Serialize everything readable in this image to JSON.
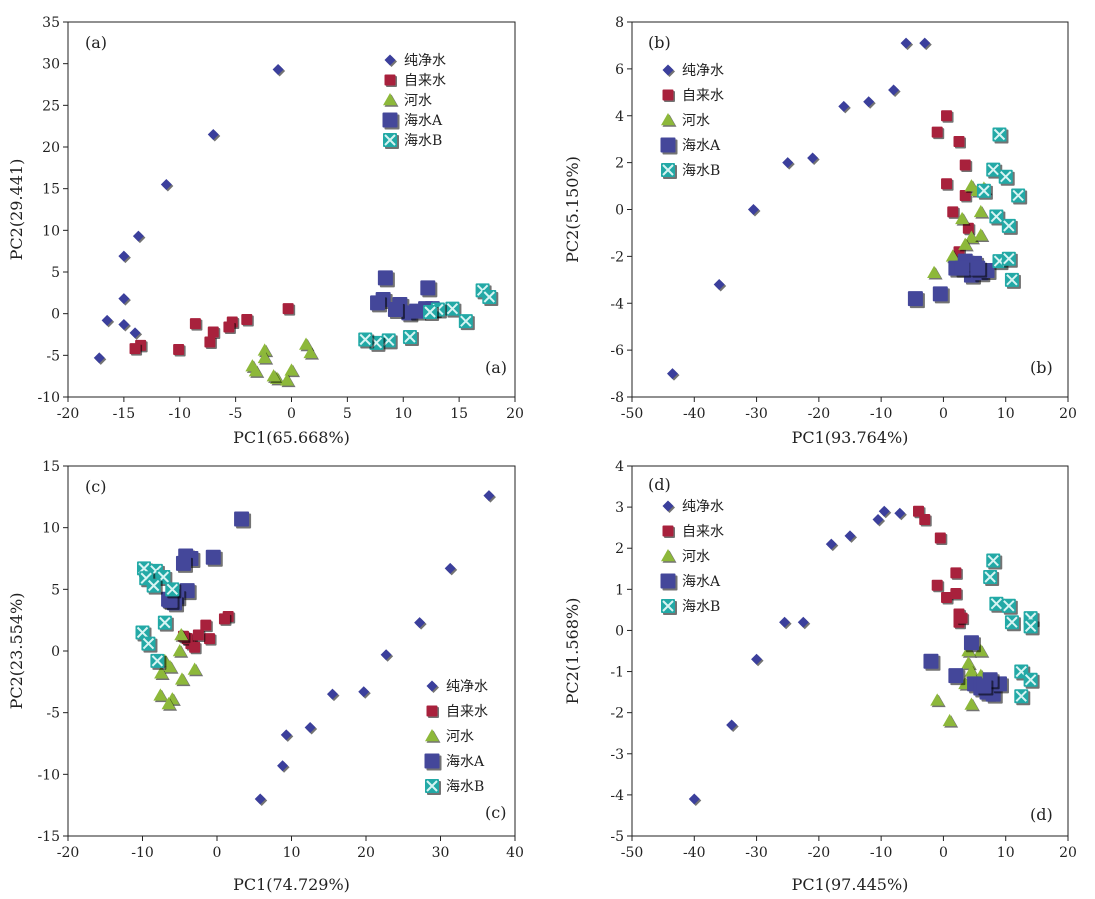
{
  "figure": {
    "colors": {
      "纯净水": "#3b3f9c",
      "自来水": "#a8213c",
      "河水": "#8db83a",
      "海水A": "#44479a",
      "海水B": "#22a9a6"
    }
  },
  "chart_data": [
    {
      "type": "scatter",
      "panel_label": "(a)",
      "xlabel": "PC1(65.668%)",
      "ylabel": "PC2(29.441)",
      "xlim": [
        -20,
        20
      ],
      "ylim": [
        -10,
        35
      ],
      "xticks": [
        -20,
        -15,
        -10,
        -5,
        0,
        5,
        10,
        15,
        20
      ],
      "yticks": [
        -10,
        -5,
        0,
        5,
        10,
        15,
        20,
        25,
        30,
        35
      ],
      "legend_position": "top-right",
      "series": [
        {
          "name": "纯净水",
          "marker": "diamond",
          "points": [
            [
              -1.2,
              29.3
            ],
            [
              -7,
              21.5
            ],
            [
              -11.2,
              15.5
            ],
            [
              -13.7,
              9.3
            ],
            [
              -15,
              6.9
            ],
            [
              -15,
              1.8
            ],
            [
              -16.5,
              -0.8
            ],
            [
              -15,
              -1.3
            ],
            [
              -14,
              -2.3
            ],
            [
              -17.2,
              -5.3
            ]
          ]
        },
        {
          "name": "自来水",
          "marker": "square",
          "points": [
            [
              -0.3,
              0.6
            ],
            [
              -4,
              -0.7
            ],
            [
              -5.3,
              -1
            ],
            [
              -5.6,
              -1.6
            ],
            [
              -8.6,
              -1.2
            ],
            [
              -7,
              -2.2
            ],
            [
              -7.3,
              -3.4
            ],
            [
              -10.1,
              -4.3
            ],
            [
              -13.5,
              -3.8
            ],
            [
              -14,
              -4.2
            ]
          ]
        },
        {
          "name": "河水",
          "marker": "triangle",
          "points": [
            [
              1.3,
              -3.7
            ],
            [
              1.7,
              -4.7
            ],
            [
              -2.4,
              -4.4
            ],
            [
              -2.4,
              -5.3
            ],
            [
              -3.5,
              -6.3
            ],
            [
              -3.2,
              -6.9
            ],
            [
              0,
              -6.8
            ],
            [
              -1.3,
              -7.8
            ],
            [
              -0.4,
              -8
            ],
            [
              -1.6,
              -7.5
            ]
          ]
        },
        {
          "name": "海水A",
          "marker": "square-big",
          "points": [
            [
              8.4,
              4.3
            ],
            [
              12.2,
              3.1
            ],
            [
              8.2,
              1.7
            ],
            [
              7.7,
              1.3
            ],
            [
              9.7,
              1.1
            ],
            [
              12,
              0.6
            ],
            [
              10.5,
              0.1
            ],
            [
              12.6,
              0.6
            ],
            [
              9.3,
              0.5
            ],
            [
              11.2,
              0.3
            ]
          ]
        },
        {
          "name": "海水B",
          "marker": "square-x",
          "points": [
            [
              17.1,
              2.8
            ],
            [
              17.7,
              2
            ],
            [
              14.4,
              0.6
            ],
            [
              13.1,
              0.5
            ],
            [
              12.4,
              0.2
            ],
            [
              15.6,
              -0.9
            ],
            [
              10.6,
              -2.8
            ],
            [
              8.7,
              -3.2
            ],
            [
              7.6,
              -3.5
            ],
            [
              6.6,
              -3.1
            ]
          ]
        }
      ]
    },
    {
      "type": "scatter",
      "panel_label": "(b)",
      "xlabel": "PC1(93.764%)",
      "ylabel": "PC2(5.150%)",
      "xlim": [
        -50,
        20
      ],
      "ylim": [
        -8,
        8
      ],
      "xticks": [
        -50,
        -40,
        -30,
        -20,
        -10,
        0,
        10,
        20
      ],
      "yticks": [
        -8,
        -6,
        -4,
        -2,
        0,
        2,
        4,
        6,
        8
      ],
      "legend_position": "top-left",
      "series": [
        {
          "name": "纯净水",
          "marker": "diamond",
          "points": [
            [
              -3,
              7.1
            ],
            [
              -6,
              7.1
            ],
            [
              -8,
              5.1
            ],
            [
              -12,
              4.6
            ],
            [
              -16,
              4.4
            ],
            [
              -21,
              2.2
            ],
            [
              -25,
              2
            ],
            [
              -30.5,
              0
            ],
            [
              -36,
              -3.2
            ],
            [
              -43.5,
              -7
            ]
          ]
        },
        {
          "name": "自来水",
          "marker": "square",
          "points": [
            [
              0.5,
              4
            ],
            [
              -1,
              3.3
            ],
            [
              2.5,
              2.9
            ],
            [
              3.5,
              1.9
            ],
            [
              0.5,
              1.1
            ],
            [
              3.5,
              0.6
            ],
            [
              1.5,
              -0.1
            ],
            [
              4,
              -0.8
            ],
            [
              2.5,
              -1.8
            ],
            [
              3,
              -2.4
            ]
          ]
        },
        {
          "name": "河水",
          "marker": "triangle",
          "points": [
            [
              4.5,
              1
            ],
            [
              6.5,
              0.9
            ],
            [
              5.5,
              0.8
            ],
            [
              3,
              -0.4
            ],
            [
              6,
              -0.1
            ],
            [
              4.5,
              -1.2
            ],
            [
              3.5,
              -1.5
            ],
            [
              6,
              -1.1
            ],
            [
              1.5,
              -2
            ],
            [
              -1.5,
              -2.7
            ]
          ]
        },
        {
          "name": "海水A",
          "marker": "square-big",
          "points": [
            [
              -4.5,
              -3.8
            ],
            [
              -0.5,
              -3.6
            ],
            [
              2,
              -2.5
            ],
            [
              3.5,
              -2.2
            ],
            [
              4.5,
              -2.8
            ],
            [
              6,
              -2.7
            ],
            [
              7,
              -2.6
            ],
            [
              5,
              -2.3
            ],
            [
              3,
              -2.5
            ],
            [
              5.5,
              -2.5
            ]
          ]
        },
        {
          "name": "海水B",
          "marker": "square-x",
          "points": [
            [
              9,
              3.2
            ],
            [
              8,
              1.7
            ],
            [
              10,
              1.4
            ],
            [
              6.5,
              0.8
            ],
            [
              12,
              0.6
            ],
            [
              8.5,
              -0.3
            ],
            [
              10.5,
              -0.7
            ],
            [
              9,
              -2.2
            ],
            [
              10.5,
              -2.1
            ],
            [
              11,
              -3
            ]
          ]
        }
      ]
    },
    {
      "type": "scatter",
      "panel_label": "(c)",
      "xlabel": "PC1(74.729%)",
      "ylabel": "PC2(23.554%)",
      "xlim": [
        -20,
        40
      ],
      "ylim": [
        -15,
        15
      ],
      "xticks": [
        -20,
        -10,
        0,
        10,
        20,
        30,
        40
      ],
      "yticks": [
        -15,
        -10,
        -5,
        0,
        5,
        10,
        15
      ],
      "legend_position": "bottom-right",
      "series": [
        {
          "name": "纯净水",
          "marker": "diamond",
          "points": [
            [
              36.5,
              12.6
            ],
            [
              31.3,
              6.7
            ],
            [
              27.2,
              2.3
            ],
            [
              22.7,
              -0.3
            ],
            [
              15.5,
              -3.5
            ],
            [
              19.7,
              -3.3
            ],
            [
              12.5,
              -6.2
            ],
            [
              9.3,
              -6.8
            ],
            [
              8.8,
              -9.3
            ],
            [
              5.8,
              -12
            ]
          ]
        },
        {
          "name": "自来水",
          "marker": "square",
          "points": [
            [
              1.5,
              2.8
            ],
            [
              1,
              2.6
            ],
            [
              -1.5,
              2.1
            ],
            [
              -4,
              1
            ],
            [
              -3.5,
              0.6
            ],
            [
              -4,
              1
            ],
            [
              -1,
              1
            ],
            [
              -3,
              0.3
            ],
            [
              -4.5,
              1.2
            ],
            [
              -2.5,
              1.3
            ]
          ]
        },
        {
          "name": "河水",
          "marker": "triangle",
          "points": [
            [
              -4.8,
              1.3
            ],
            [
              -5,
              0
            ],
            [
              -7,
              -0.8
            ],
            [
              -6.3,
              -1.3
            ],
            [
              -7.5,
              -1.8
            ],
            [
              -3,
              -1.5
            ],
            [
              -4.7,
              -2.3
            ],
            [
              -6,
              -3.9
            ],
            [
              -7.6,
              -3.6
            ],
            [
              -6.5,
              -4.3
            ]
          ]
        },
        {
          "name": "海水A",
          "marker": "square-big",
          "points": [
            [
              3.3,
              10.7
            ],
            [
              -4.2,
              7.7
            ],
            [
              -0.5,
              7.6
            ],
            [
              -3.5,
              7.5
            ],
            [
              -4.5,
              7.1
            ],
            [
              -4,
              4.9
            ],
            [
              -5.4,
              4.4
            ],
            [
              -6.5,
              4.2
            ],
            [
              -5.7,
              3.9
            ],
            [
              -6.3,
              4.1
            ]
          ]
        },
        {
          "name": "海水B",
          "marker": "square-x",
          "points": [
            [
              -9.8,
              6.7
            ],
            [
              -8.2,
              6.5
            ],
            [
              -7.2,
              6
            ],
            [
              -9.5,
              5.9
            ],
            [
              -8.5,
              5.3
            ],
            [
              -6,
              5
            ],
            [
              -7,
              2.3
            ],
            [
              -10,
              1.5
            ],
            [
              -9.2,
              0.6
            ],
            [
              -8,
              -0.8
            ]
          ]
        }
      ]
    },
    {
      "type": "scatter",
      "panel_label": "(d)",
      "xlabel": "PC1(97.445%)",
      "ylabel": "PC2(1.568%)",
      "xlim": [
        -50,
        20
      ],
      "ylim": [
        -5,
        4
      ],
      "xticks": [
        -50,
        -40,
        -30,
        -20,
        -10,
        0,
        10,
        20
      ],
      "yticks": [
        -5,
        -4,
        -3,
        -2,
        -1,
        0,
        1,
        2,
        3,
        4
      ],
      "legend_position": "top-left",
      "series": [
        {
          "name": "纯净水",
          "marker": "diamond",
          "points": [
            [
              -9.5,
              2.9
            ],
            [
              -7,
              2.85
            ],
            [
              -10.5,
              2.7
            ],
            [
              -15,
              2.3
            ],
            [
              -18,
              2.1
            ],
            [
              -25.5,
              0.2
            ],
            [
              -22.5,
              0.2
            ],
            [
              -30,
              -0.7
            ],
            [
              -34,
              -2.3
            ],
            [
              -40,
              -4.1
            ]
          ]
        },
        {
          "name": "自来水",
          "marker": "square",
          "points": [
            [
              -4,
              2.9
            ],
            [
              -3,
              2.7
            ],
            [
              -0.5,
              2.25
            ],
            [
              2,
              1.4
            ],
            [
              -1,
              1.1
            ],
            [
              0.5,
              0.8
            ],
            [
              2,
              0.9
            ],
            [
              2.5,
              0.4
            ],
            [
              2.5,
              0.2
            ],
            [
              3,
              0.3
            ]
          ]
        },
        {
          "name": "河水",
          "marker": "triangle",
          "points": [
            [
              6,
              -0.5
            ],
            [
              4,
              -0.5
            ],
            [
              4,
              -0.8
            ],
            [
              4.5,
              -1
            ],
            [
              6,
              -1.1
            ],
            [
              5,
              -1.2
            ],
            [
              -1,
              -1.7
            ],
            [
              4.5,
              -1.8
            ],
            [
              1,
              -2.2
            ],
            [
              3.5,
              -1.3
            ]
          ]
        },
        {
          "name": "海水A",
          "marker": "square-big",
          "points": [
            [
              4.5,
              -0.3
            ],
            [
              -2,
              -0.75
            ],
            [
              2,
              -1.1
            ],
            [
              5,
              -1.3
            ],
            [
              6,
              -1.4
            ],
            [
              7,
              -1.5
            ],
            [
              8,
              -1.55
            ],
            [
              9,
              -1.3
            ],
            [
              7.5,
              -1.2
            ],
            [
              6.5,
              -1.35
            ]
          ]
        },
        {
          "name": "海水B",
          "marker": "square-x",
          "points": [
            [
              8,
              1.7
            ],
            [
              7.5,
              1.3
            ],
            [
              8.5,
              0.65
            ],
            [
              10.5,
              0.6
            ],
            [
              11,
              0.2
            ],
            [
              14,
              0.3
            ],
            [
              14,
              0.1
            ],
            [
              12.5,
              -1
            ],
            [
              14,
              -1.2
            ],
            [
              12.5,
              -1.6
            ]
          ]
        }
      ]
    }
  ]
}
